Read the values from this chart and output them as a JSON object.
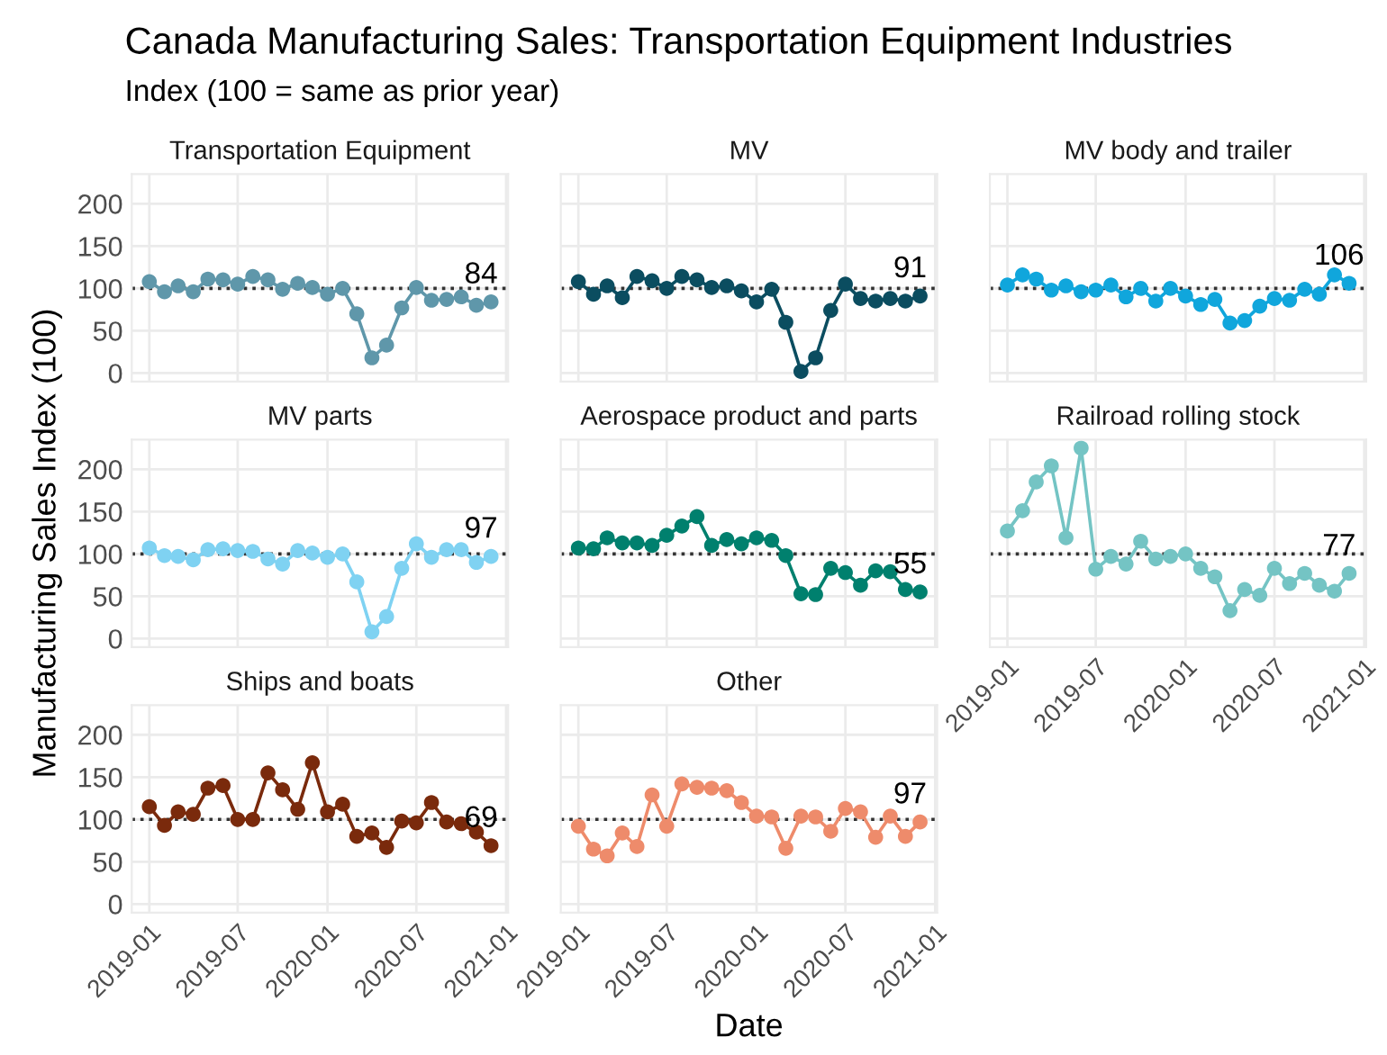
{
  "chart_data": [
    {
      "type": "line",
      "title": "Transportation Equipment",
      "annotations": [
        "Canada Manufacturing Sales: Transportation Equipment Industries",
        "Index (100 = same as prior year)",
        {
          "text": "84",
          "x": "2020-12",
          "y": 84
        }
      ],
      "x": [
        "2019-01",
        "2019-02",
        "2019-03",
        "2019-04",
        "2019-05",
        "2019-06",
        "2019-07",
        "2019-08",
        "2019-09",
        "2019-10",
        "2019-11",
        "2019-12",
        "2020-01",
        "2020-02",
        "2020-03",
        "2020-04",
        "2020-05",
        "2020-06",
        "2020-07",
        "2020-08",
        "2020-09",
        "2020-10",
        "2020-11",
        "2020-12"
      ],
      "series": [
        {
          "color": "#5f97aa",
          "values": [
            108,
            96,
            103,
            96,
            111,
            110,
            105,
            114,
            110,
            99,
            106,
            101,
            93,
            100,
            70,
            18,
            33,
            77,
            101,
            86,
            87,
            90,
            80,
            84
          ]
        }
      ],
      "xlim": [
        "2018-11-26",
        "2021-01-05"
      ],
      "xticks": [
        "2019-01",
        "2019-07",
        "2020-01",
        "2020-07",
        "2021-01"
      ],
      "ylim": [
        -10,
        235
      ],
      "yticks": [
        0,
        50,
        100,
        150,
        200
      ],
      "tick_labels": "y",
      "grid": true,
      "marker": "circle",
      "ref_lines": [
        {
          "axis": "y",
          "value": 100,
          "color": "#333333",
          "line_style": "dotted"
        }
      ]
    },
    {
      "type": "line",
      "title": "MV",
      "annotations": [
        {
          "text": "91",
          "x": "2020-12",
          "y": 91
        }
      ],
      "x": [
        "2019-01",
        "2019-02",
        "2019-03",
        "2019-04",
        "2019-05",
        "2019-06",
        "2019-07",
        "2019-08",
        "2019-09",
        "2019-10",
        "2019-11",
        "2019-12",
        "2020-01",
        "2020-02",
        "2020-03",
        "2020-04",
        "2020-05",
        "2020-06",
        "2020-07",
        "2020-08",
        "2020-09",
        "2020-10",
        "2020-11",
        "2020-12"
      ],
      "series": [
        {
          "color": "#0b4d60",
          "values": [
            108,
            93,
            103,
            89,
            114,
            109,
            100,
            114,
            110,
            101,
            103,
            97,
            84,
            99,
            60,
            2,
            18,
            74,
            105,
            88,
            85,
            88,
            85,
            91
          ]
        }
      ],
      "xlim": [
        "2018-11-26",
        "2021-01-05"
      ],
      "xticks": [
        "2019-01",
        "2019-07",
        "2020-01",
        "2020-07",
        "2021-01"
      ],
      "ylim": [
        -10,
        235
      ],
      "yticks": [
        0,
        50,
        100,
        150,
        200
      ],
      "tick_labels": false,
      "grid": true,
      "marker": "circle",
      "ref_lines": [
        {
          "axis": "y",
          "value": 100,
          "color": "#333333",
          "line_style": "dotted"
        }
      ]
    },
    {
      "type": "line",
      "title": "MV body and trailer",
      "annotations": [
        {
          "text": "106",
          "x": "2020-12",
          "y": 106
        }
      ],
      "x": [
        "2019-01",
        "2019-02",
        "2019-03",
        "2019-04",
        "2019-05",
        "2019-06",
        "2019-07",
        "2019-08",
        "2019-09",
        "2019-10",
        "2019-11",
        "2019-12",
        "2020-01",
        "2020-02",
        "2020-03",
        "2020-04",
        "2020-05",
        "2020-06",
        "2020-07",
        "2020-08",
        "2020-09",
        "2020-10",
        "2020-11",
        "2020-12"
      ],
      "series": [
        {
          "color": "#10a6dc",
          "values": [
            104,
            116,
            111,
            98,
            103,
            96,
            98,
            104,
            90,
            100,
            85,
            100,
            91,
            81,
            87,
            59,
            62,
            79,
            88,
            86,
            99,
            93,
            116,
            106
          ]
        }
      ],
      "xlim": [
        "2018-11-26",
        "2021-01-05"
      ],
      "xticks": [
        "2019-01",
        "2019-07",
        "2020-01",
        "2020-07",
        "2021-01"
      ],
      "ylim": [
        -10,
        235
      ],
      "yticks": [
        0,
        50,
        100,
        150,
        200
      ],
      "tick_labels": false,
      "grid": true,
      "marker": "circle",
      "ref_lines": [
        {
          "axis": "y",
          "value": 100,
          "color": "#333333",
          "line_style": "dotted"
        }
      ]
    },
    {
      "type": "line",
      "title": "MV parts",
      "annotations": [
        {
          "text": "97",
          "x": "2020-12",
          "y": 97
        }
      ],
      "ylabel": "Manufacturing Sales Index (100)",
      "x": [
        "2019-01",
        "2019-02",
        "2019-03",
        "2019-04",
        "2019-05",
        "2019-06",
        "2019-07",
        "2019-08",
        "2019-09",
        "2019-10",
        "2019-11",
        "2019-12",
        "2020-01",
        "2020-02",
        "2020-03",
        "2020-04",
        "2020-05",
        "2020-06",
        "2020-07",
        "2020-08",
        "2020-09",
        "2020-10",
        "2020-11",
        "2020-12"
      ],
      "series": [
        {
          "color": "#7fd2f2",
          "values": [
            107,
            98,
            97,
            93,
            105,
            106,
            104,
            103,
            94,
            88,
            104,
            101,
            96,
            100,
            67,
            8,
            26,
            83,
            112,
            96,
            105,
            105,
            90,
            97
          ]
        }
      ],
      "xlim": [
        "2018-11-26",
        "2021-01-05"
      ],
      "xticks": [
        "2019-01",
        "2019-07",
        "2020-01",
        "2020-07",
        "2021-01"
      ],
      "ylim": [
        -10,
        235
      ],
      "yticks": [
        0,
        50,
        100,
        150,
        200
      ],
      "tick_labels": "y",
      "grid": true,
      "marker": "circle",
      "ref_lines": [
        {
          "axis": "y",
          "value": 100,
          "color": "#333333",
          "line_style": "dotted"
        }
      ]
    },
    {
      "type": "line",
      "title": "Aerospace product and parts",
      "annotations": [
        {
          "text": "55",
          "x": "2020-12",
          "y": 55
        }
      ],
      "x": [
        "2019-01",
        "2019-02",
        "2019-03",
        "2019-04",
        "2019-05",
        "2019-06",
        "2019-07",
        "2019-08",
        "2019-09",
        "2019-10",
        "2019-11",
        "2019-12",
        "2020-01",
        "2020-02",
        "2020-03",
        "2020-04",
        "2020-05",
        "2020-06",
        "2020-07",
        "2020-08",
        "2020-09",
        "2020-10",
        "2020-11",
        "2020-12"
      ],
      "series": [
        {
          "color": "#00806e",
          "values": [
            107,
            106,
            119,
            113,
            113,
            110,
            122,
            133,
            144,
            110,
            117,
            112,
            119,
            116,
            98,
            53,
            52,
            83,
            78,
            63,
            80,
            79,
            58,
            55
          ]
        }
      ],
      "xlim": [
        "2018-11-26",
        "2021-01-05"
      ],
      "xticks": [
        "2019-01",
        "2019-07",
        "2020-01",
        "2020-07",
        "2021-01"
      ],
      "ylim": [
        -10,
        235
      ],
      "yticks": [
        0,
        50,
        100,
        150,
        200
      ],
      "tick_labels": false,
      "grid": true,
      "marker": "circle",
      "ref_lines": [
        {
          "axis": "y",
          "value": 100,
          "color": "#333333",
          "line_style": "dotted"
        }
      ]
    },
    {
      "type": "line",
      "title": "Railroad rolling stock",
      "annotations": [
        {
          "text": "77",
          "x": "2020-12",
          "y": 77
        }
      ],
      "x": [
        "2019-01",
        "2019-02",
        "2019-03",
        "2019-04",
        "2019-05",
        "2019-06",
        "2019-07",
        "2019-08",
        "2019-09",
        "2019-10",
        "2019-11",
        "2019-12",
        "2020-01",
        "2020-02",
        "2020-03",
        "2020-04",
        "2020-05",
        "2020-06",
        "2020-07",
        "2020-08",
        "2020-09",
        "2020-10",
        "2020-11",
        "2020-12"
      ],
      "series": [
        {
          "color": "#74c4c4",
          "values": [
            127,
            151,
            185,
            204,
            119,
            225,
            82,
            97,
            88,
            115,
            94,
            97,
            100,
            83,
            73,
            33,
            58,
            51,
            83,
            65,
            77,
            63,
            56,
            77
          ]
        }
      ],
      "xlim": [
        "2018-11-26",
        "2021-01-05"
      ],
      "xticks": [
        "2019-01",
        "2019-07",
        "2020-01",
        "2020-07",
        "2021-01"
      ],
      "ylim": [
        -10,
        235
      ],
      "yticks": [
        0,
        50,
        100,
        150,
        200
      ],
      "tick_labels": "x",
      "grid": true,
      "marker": "circle",
      "ref_lines": [
        {
          "axis": "y",
          "value": 100,
          "color": "#333333",
          "line_style": "dotted"
        }
      ]
    },
    {
      "type": "line",
      "title": "Ships and boats",
      "annotations": [
        {
          "text": "69",
          "x": "2020-12",
          "y": 69
        }
      ],
      "x": [
        "2019-01",
        "2019-02",
        "2019-03",
        "2019-04",
        "2019-05",
        "2019-06",
        "2019-07",
        "2019-08",
        "2019-09",
        "2019-10",
        "2019-11",
        "2019-12",
        "2020-01",
        "2020-02",
        "2020-03",
        "2020-04",
        "2020-05",
        "2020-06",
        "2020-07",
        "2020-08",
        "2020-09",
        "2020-10",
        "2020-11",
        "2020-12"
      ],
      "series": [
        {
          "color": "#7a2a0c",
          "values": [
            115,
            93,
            109,
            106,
            137,
            140,
            100,
            100,
            155,
            135,
            112,
            167,
            109,
            118,
            80,
            84,
            67,
            98,
            96,
            120,
            97,
            95,
            85,
            69
          ]
        }
      ],
      "xlim": [
        "2018-11-26",
        "2021-01-05"
      ],
      "xticks": [
        "2019-01",
        "2019-07",
        "2020-01",
        "2020-07",
        "2021-01"
      ],
      "ylim": [
        -10,
        235
      ],
      "yticks": [
        0,
        50,
        100,
        150,
        200
      ],
      "grid": true,
      "marker": "circle",
      "ref_lines": [
        {
          "axis": "y",
          "value": 100,
          "color": "#333333",
          "line_style": "dotted"
        }
      ]
    },
    {
      "type": "line",
      "title": "Other",
      "annotations": [
        {
          "text": "97",
          "x": "2020-12",
          "y": 97
        }
      ],
      "xlabel": "Date",
      "x": [
        "2019-01",
        "2019-02",
        "2019-03",
        "2019-04",
        "2019-05",
        "2019-06",
        "2019-07",
        "2019-08",
        "2019-09",
        "2019-10",
        "2019-11",
        "2019-12",
        "2020-01",
        "2020-02",
        "2020-03",
        "2020-04",
        "2020-05",
        "2020-06",
        "2020-07",
        "2020-08",
        "2020-09",
        "2020-10",
        "2020-11",
        "2020-12"
      ],
      "series": [
        {
          "color": "#ee8b6b",
          "values": [
            92,
            65,
            57,
            84,
            68,
            129,
            92,
            142,
            138,
            137,
            134,
            120,
            104,
            103,
            66,
            104,
            103,
            86,
            113,
            109,
            79,
            104,
            80,
            97
          ]
        }
      ],
      "xlim": [
        "2018-11-26",
        "2021-01-05"
      ],
      "xticks": [
        "2019-01",
        "2019-07",
        "2020-01",
        "2020-07",
        "2021-01"
      ],
      "ylim": [
        -10,
        235
      ],
      "yticks": [
        0,
        50,
        100,
        150,
        200
      ],
      "tick_labels": "x",
      "grid": true,
      "marker": "circle",
      "ref_lines": [
        {
          "axis": "y",
          "value": 100,
          "color": "#333333",
          "line_style": "dotted"
        }
      ]
    }
  ]
}
